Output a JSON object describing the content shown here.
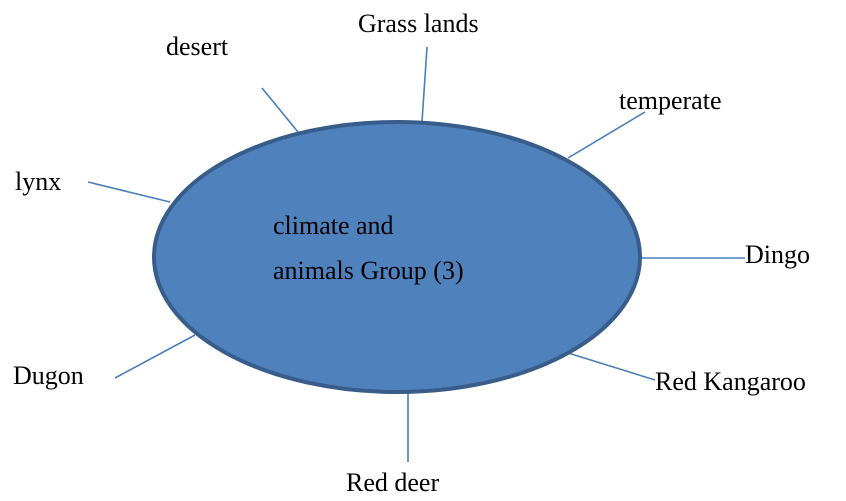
{
  "center": {
    "lines": [
      "climate and",
      "animals Group (3)"
    ]
  },
  "nodes": [
    {
      "label": "desert"
    },
    {
      "label": "Grass lands"
    },
    {
      "label": "temperate"
    },
    {
      "label": "lynx"
    },
    {
      "label": "Dingo"
    },
    {
      "label": "Dugon"
    },
    {
      "label": "Red Kangaroo"
    },
    {
      "label": "Red deer"
    }
  ]
}
